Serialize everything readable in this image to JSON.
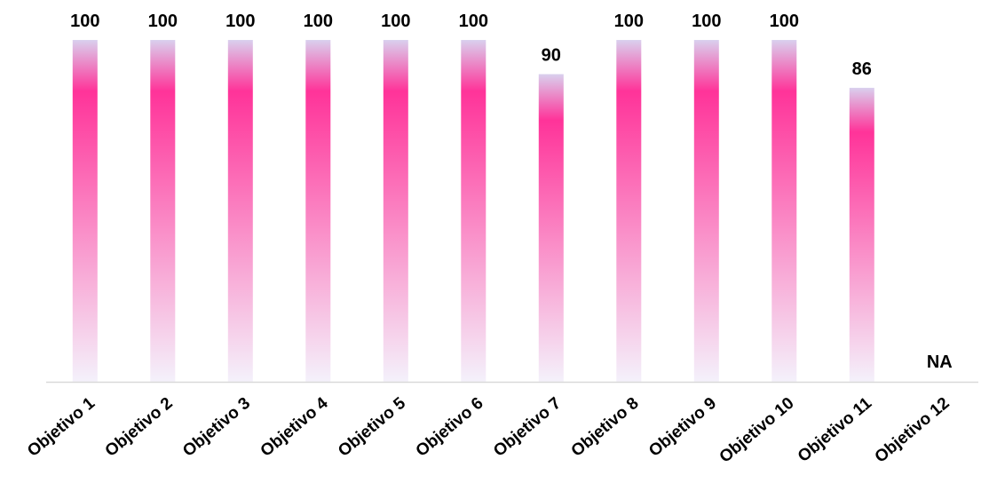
{
  "chart_data": {
    "type": "bar",
    "categories": [
      "Objetivo 1",
      "Objetivo 2",
      "Objetivo 3",
      "Objetivo 4",
      "Objetivo 5",
      "Objetivo 6",
      "Objetivo 7",
      "Objetivo 8",
      "Objetivo 9",
      "Objetivo 10",
      "Objetivo 11",
      "Objetivo 12"
    ],
    "values": [
      100,
      100,
      100,
      100,
      100,
      100,
      90,
      100,
      100,
      100,
      86,
      null
    ],
    "data_labels": [
      "100",
      "100",
      "100",
      "100",
      "100",
      "100",
      "90",
      "100",
      "100",
      "100",
      "86",
      "NA"
    ],
    "ylim": [
      0,
      100
    ],
    "grid": false,
    "legend": "none",
    "colors": {
      "bar_top": "#d9d0ee",
      "bar_main": "#ff3399",
      "bar_bottom": "#f4f1fb",
      "axis": "#d9d9d9",
      "text": "#000000"
    }
  }
}
